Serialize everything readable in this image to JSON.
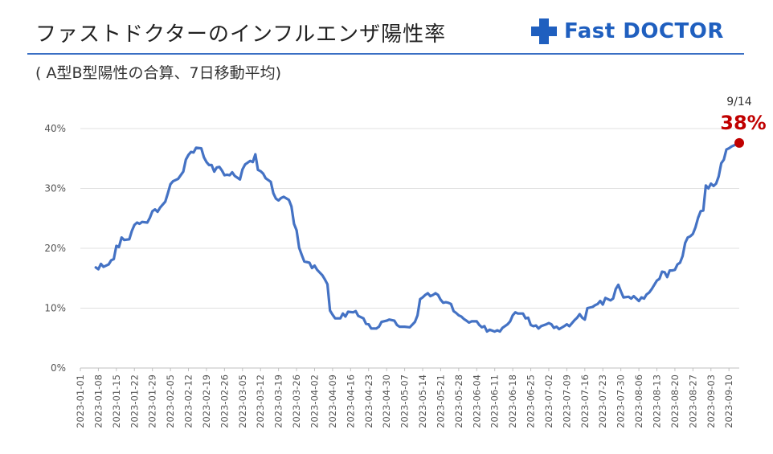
{
  "header": {
    "title": "ファストドクターのインフルエンザ陽性率",
    "subtitle": "( A型B型陽性の合算、7日移動平均)",
    "logo_text": "Fast DOCTOR"
  },
  "annotation": {
    "date_label": "9/14",
    "value_label": "38%"
  },
  "colors": {
    "line": "#4472c4",
    "marker": "#c00000",
    "accent": "#1f5fbf"
  },
  "chart_data": {
    "type": "line",
    "title": "ファストドクターのインフルエンザ陽性率",
    "subtitle": "( A型B型陽性の合算、7日移動平均)",
    "xlabel": "",
    "ylabel": "",
    "ylim": [
      0,
      40
    ],
    "yticks": [
      "0%",
      "10%",
      "20%",
      "30%",
      "40%"
    ],
    "grid": true,
    "x_start": "2023-01-01",
    "x_end": "2023-09-14",
    "xtick_labels": [
      "2023-01-01",
      "2023-01-08",
      "2023-01-15",
      "2023-01-22",
      "2023-01-29",
      "2023-02-05",
      "2023-02-12",
      "2023-02-19",
      "2023-02-26",
      "2023-03-05",
      "2023-03-12",
      "2023-03-19",
      "2023-03-26",
      "2023-04-02",
      "2023-04-09",
      "2023-04-16",
      "2023-04-23",
      "2023-04-30",
      "2023-05-07",
      "2023-05-14",
      "2023-05-21",
      "2023-05-28",
      "2023-06-04",
      "2023-06-11",
      "2023-06-18",
      "2023-06-25",
      "2023-07-02",
      "2023-07-09",
      "2023-07-16",
      "2023-07-23",
      "2023-07-30",
      "2023-08-06",
      "2023-08-13",
      "2023-08-20",
      "2023-08-27",
      "2023-09-03",
      "2023-09-10"
    ],
    "series": [
      {
        "points": [
          [
            "2023-01-07",
            16.8
          ],
          [
            "2023-01-08",
            16.5
          ],
          [
            "2023-01-09",
            17.4
          ],
          [
            "2023-01-10",
            16.9
          ],
          [
            "2023-01-12",
            17.3
          ],
          [
            "2023-01-13",
            18
          ],
          [
            "2023-01-14",
            18.2
          ],
          [
            "2023-01-15",
            20.4
          ],
          [
            "2023-01-16",
            20.2
          ],
          [
            "2023-01-17",
            21.8
          ],
          [
            "2023-01-18",
            21.4
          ],
          [
            "2023-01-20",
            21.5
          ],
          [
            "2023-01-21",
            22.9
          ],
          [
            "2023-01-22",
            23.9
          ],
          [
            "2023-01-23",
            24.3
          ],
          [
            "2023-01-24",
            24.1
          ],
          [
            "2023-01-25",
            24.4
          ],
          [
            "2023-01-27",
            24.3
          ],
          [
            "2023-01-28",
            25.1
          ],
          [
            "2023-01-29",
            26.2
          ],
          [
            "2023-01-30",
            26.5
          ],
          [
            "2023-01-31",
            26.1
          ],
          [
            "2023-02-01",
            26.8
          ],
          [
            "2023-02-03",
            27.8
          ],
          [
            "2023-02-04",
            29.2
          ],
          [
            "2023-02-05",
            30.7
          ],
          [
            "2023-02-06",
            31.2
          ],
          [
            "2023-02-08",
            31.6
          ],
          [
            "2023-02-09",
            32.2
          ],
          [
            "2023-02-10",
            32.8
          ],
          [
            "2023-02-11",
            34.8
          ],
          [
            "2023-02-12",
            35.6
          ],
          [
            "2023-02-13",
            36.1
          ],
          [
            "2023-02-14",
            36
          ],
          [
            "2023-02-15",
            36.8
          ],
          [
            "2023-02-17",
            36.7
          ],
          [
            "2023-02-18",
            35.2
          ],
          [
            "2023-02-19",
            34.4
          ],
          [
            "2023-02-20",
            33.9
          ],
          [
            "2023-02-21",
            33.9
          ],
          [
            "2023-02-22",
            32.8
          ],
          [
            "2023-02-23",
            33.5
          ],
          [
            "2023-02-24",
            33.6
          ],
          [
            "2023-02-25",
            33
          ],
          [
            "2023-02-26",
            32.2
          ],
          [
            "2023-02-27",
            32.3
          ],
          [
            "2023-02-28",
            32.2
          ],
          [
            "2023-03-01",
            32.7
          ],
          [
            "2023-03-02",
            32.1
          ],
          [
            "2023-03-04",
            31.5
          ],
          [
            "2023-03-05",
            33.2
          ],
          [
            "2023-03-06",
            34
          ],
          [
            "2023-03-08",
            34.6
          ],
          [
            "2023-03-09",
            34.4
          ],
          [
            "2023-03-10",
            35.7
          ],
          [
            "2023-03-11",
            33.1
          ],
          [
            "2023-03-12",
            32.9
          ],
          [
            "2023-03-13",
            32.5
          ],
          [
            "2023-03-14",
            31.7
          ],
          [
            "2023-03-16",
            31.1
          ],
          [
            "2023-03-17",
            29.2
          ],
          [
            "2023-03-18",
            28.3
          ],
          [
            "2023-03-19",
            28
          ],
          [
            "2023-03-20",
            28.4
          ],
          [
            "2023-03-21",
            28.6
          ],
          [
            "2023-03-23",
            28.1
          ],
          [
            "2023-03-24",
            27
          ],
          [
            "2023-03-25",
            24.1
          ],
          [
            "2023-03-26",
            23
          ],
          [
            "2023-03-27",
            20.1
          ],
          [
            "2023-03-28",
            18.9
          ],
          [
            "2023-03-29",
            17.8
          ],
          [
            "2023-03-31",
            17.6
          ],
          [
            "2023-04-01",
            16.7
          ],
          [
            "2023-04-02",
            17.1
          ],
          [
            "2023-04-03",
            16.4
          ],
          [
            "2023-04-05",
            15.5
          ],
          [
            "2023-04-06",
            14.8
          ],
          [
            "2023-04-07",
            14
          ],
          [
            "2023-04-08",
            9.6
          ],
          [
            "2023-04-09",
            8.9
          ],
          [
            "2023-04-10",
            8.3
          ],
          [
            "2023-04-12",
            8.3
          ],
          [
            "2023-04-13",
            9.1
          ],
          [
            "2023-04-14",
            8.6
          ],
          [
            "2023-04-15",
            9.4
          ],
          [
            "2023-04-17",
            9.3
          ],
          [
            "2023-04-18",
            9.5
          ],
          [
            "2023-04-19",
            8.7
          ],
          [
            "2023-04-21",
            8.3
          ],
          [
            "2023-04-22",
            7.4
          ],
          [
            "2023-04-23",
            7.3
          ],
          [
            "2023-04-24",
            6.6
          ],
          [
            "2023-04-26",
            6.6
          ],
          [
            "2023-04-27",
            6.9
          ],
          [
            "2023-04-28",
            7.7
          ],
          [
            "2023-04-30",
            7.9
          ],
          [
            "2023-05-01",
            8.1
          ],
          [
            "2023-05-03",
            7.9
          ],
          [
            "2023-05-04",
            7.2
          ],
          [
            "2023-05-05",
            6.9
          ],
          [
            "2023-05-07",
            6.9
          ],
          [
            "2023-05-09",
            6.8
          ],
          [
            "2023-05-11",
            7.7
          ],
          [
            "2023-05-12",
            8.8
          ],
          [
            "2023-05-13",
            11.5
          ],
          [
            "2023-05-14",
            11.8
          ],
          [
            "2023-05-15",
            12.2
          ],
          [
            "2023-05-16",
            12.5
          ],
          [
            "2023-05-17",
            12
          ],
          [
            "2023-05-18",
            12.2
          ],
          [
            "2023-05-19",
            12.5
          ],
          [
            "2023-05-20",
            12.2
          ],
          [
            "2023-05-21",
            11.4
          ],
          [
            "2023-05-22",
            10.9
          ],
          [
            "2023-05-23",
            11
          ],
          [
            "2023-05-24",
            10.9
          ],
          [
            "2023-05-25",
            10.7
          ],
          [
            "2023-05-26",
            9.5
          ],
          [
            "2023-05-27",
            9.2
          ],
          [
            "2023-05-28",
            8.8
          ],
          [
            "2023-05-29",
            8.6
          ],
          [
            "2023-05-30",
            8.2
          ],
          [
            "2023-05-31",
            7.9
          ],
          [
            "2023-06-01",
            7.6
          ],
          [
            "2023-06-02",
            7.8
          ],
          [
            "2023-06-04",
            7.8
          ],
          [
            "2023-06-05",
            7.2
          ],
          [
            "2023-06-06",
            6.8
          ],
          [
            "2023-06-07",
            7
          ],
          [
            "2023-06-08",
            6.1
          ],
          [
            "2023-06-09",
            6.4
          ],
          [
            "2023-06-11",
            6.1
          ],
          [
            "2023-06-12",
            6.3
          ],
          [
            "2023-06-13",
            6.1
          ],
          [
            "2023-06-14",
            6.7
          ],
          [
            "2023-06-16",
            7.3
          ],
          [
            "2023-06-17",
            7.8
          ],
          [
            "2023-06-18",
            8.8
          ],
          [
            "2023-06-19",
            9.3
          ],
          [
            "2023-06-20",
            9.1
          ],
          [
            "2023-06-22",
            9.1
          ],
          [
            "2023-06-23",
            8.3
          ],
          [
            "2023-06-24",
            8.4
          ],
          [
            "2023-06-25",
            7.2
          ],
          [
            "2023-06-26",
            7
          ],
          [
            "2023-06-27",
            7.1
          ],
          [
            "2023-06-28",
            6.6
          ],
          [
            "2023-06-29",
            7
          ],
          [
            "2023-07-01",
            7.3
          ],
          [
            "2023-07-02",
            7.5
          ],
          [
            "2023-07-03",
            7.3
          ],
          [
            "2023-07-04",
            6.7
          ],
          [
            "2023-07-05",
            6.9
          ],
          [
            "2023-07-06",
            6.5
          ],
          [
            "2023-07-08",
            7
          ],
          [
            "2023-07-09",
            7.3
          ],
          [
            "2023-07-10",
            7
          ],
          [
            "2023-07-12",
            8
          ],
          [
            "2023-07-13",
            8.4
          ],
          [
            "2023-07-14",
            9
          ],
          [
            "2023-07-15",
            8.4
          ],
          [
            "2023-07-16",
            8.1
          ],
          [
            "2023-07-17",
            10
          ],
          [
            "2023-07-19",
            10.2
          ],
          [
            "2023-07-20",
            10.5
          ],
          [
            "2023-07-21",
            10.7
          ],
          [
            "2023-07-22",
            11.2
          ],
          [
            "2023-07-23",
            10.6
          ],
          [
            "2023-07-24",
            11.7
          ],
          [
            "2023-07-26",
            11.3
          ],
          [
            "2023-07-27",
            11.6
          ],
          [
            "2023-07-28",
            13.2
          ],
          [
            "2023-07-29",
            13.9
          ],
          [
            "2023-07-30",
            12.8
          ],
          [
            "2023-07-31",
            11.8
          ],
          [
            "2023-08-02",
            11.9
          ],
          [
            "2023-08-03",
            11.6
          ],
          [
            "2023-08-04",
            12
          ],
          [
            "2023-08-05",
            11.6
          ],
          [
            "2023-08-06",
            11.2
          ],
          [
            "2023-08-07",
            11.8
          ],
          [
            "2023-08-08",
            11.6
          ],
          [
            "2023-08-09",
            12.3
          ],
          [
            "2023-08-10",
            12.6
          ],
          [
            "2023-08-11",
            13.2
          ],
          [
            "2023-08-12",
            13.9
          ],
          [
            "2023-08-13",
            14.6
          ],
          [
            "2023-08-14",
            14.9
          ],
          [
            "2023-08-15",
            16.1
          ],
          [
            "2023-08-16",
            16
          ],
          [
            "2023-08-17",
            15.2
          ],
          [
            "2023-08-18",
            16.3
          ],
          [
            "2023-08-19",
            16.3
          ],
          [
            "2023-08-20",
            16.4
          ],
          [
            "2023-08-21",
            17.3
          ],
          [
            "2023-08-22",
            17.6
          ],
          [
            "2023-08-23",
            18.7
          ],
          [
            "2023-08-24",
            20.9
          ],
          [
            "2023-08-25",
            21.8
          ],
          [
            "2023-08-26",
            22
          ],
          [
            "2023-08-27",
            22.4
          ],
          [
            "2023-08-28",
            23.5
          ],
          [
            "2023-08-29",
            25.1
          ],
          [
            "2023-08-30",
            26.2
          ],
          [
            "2023-08-31",
            26.3
          ],
          [
            "2023-09-01",
            30.5
          ],
          [
            "2023-09-02",
            30
          ],
          [
            "2023-09-03",
            30.8
          ],
          [
            "2023-09-04",
            30.4
          ],
          [
            "2023-09-05",
            30.8
          ],
          [
            "2023-09-06",
            32
          ],
          [
            "2023-09-07",
            34.2
          ],
          [
            "2023-09-08",
            34.8
          ],
          [
            "2023-09-09",
            36.5
          ],
          [
            "2023-09-10",
            36.7
          ],
          [
            "2023-09-11",
            37
          ],
          [
            "2023-09-14",
            37.6
          ]
        ]
      }
    ],
    "highlight": {
      "x": "2023-09-14",
      "y": 37.6,
      "label_date": "9/14",
      "label_value": "38%"
    }
  }
}
